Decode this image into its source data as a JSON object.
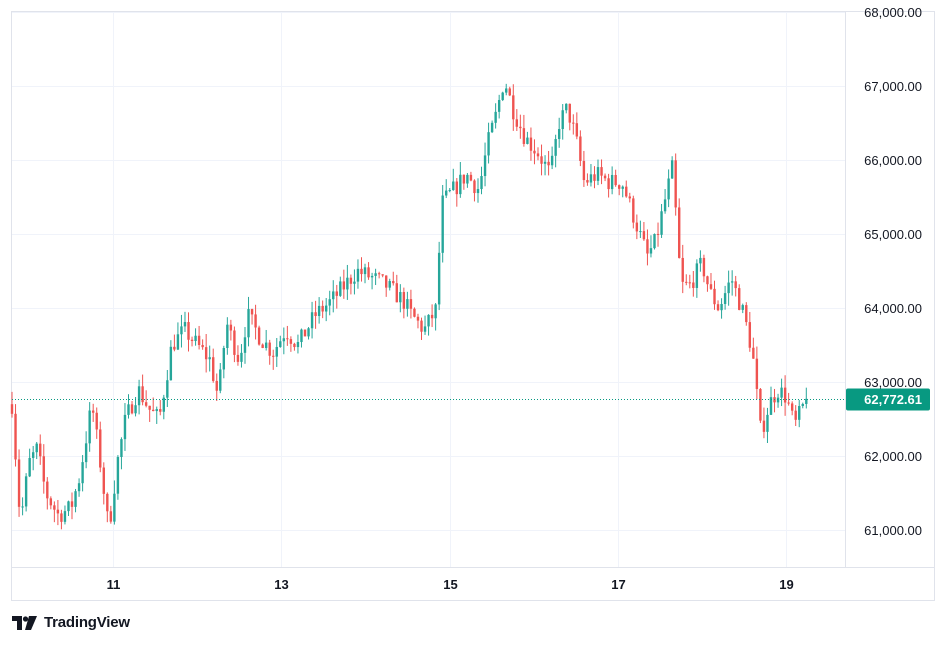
{
  "brand": {
    "name": "TradingView"
  },
  "colors": {
    "up": "#26a69a",
    "down": "#ef5350",
    "last_price_bg": "#089981",
    "grid": "#f0f3fa",
    "text": "#131722"
  },
  "last_price": {
    "value": 62772.61,
    "label": "62,772.61"
  },
  "chart_data": {
    "type": "candlestick",
    "title": "",
    "ylim": [
      60500,
      68000
    ],
    "xlim": [
      9.8,
      19.7
    ],
    "yticks": [
      {
        "value": 61000,
        "label": "61,000.00"
      },
      {
        "value": 62000,
        "label": "62,000.00"
      },
      {
        "value": 63000,
        "label": "63,000.00"
      },
      {
        "value": 64000,
        "label": "64,000.00"
      },
      {
        "value": 65000,
        "label": "65,000.00"
      },
      {
        "value": 66000,
        "label": "66,000.00"
      },
      {
        "value": 67000,
        "label": "67,000.00"
      },
      {
        "value": 68000,
        "label": "68,000.00"
      }
    ],
    "xticks": [
      {
        "value": 11,
        "label": "11"
      },
      {
        "value": 13,
        "label": "13"
      },
      {
        "value": 15,
        "label": "15"
      },
      {
        "value": 17,
        "label": "17"
      },
      {
        "value": 19,
        "label": "19"
      }
    ],
    "grid": true,
    "candle_days_span": [
      9.8,
      19.24
    ],
    "close_path": [
      [
        9.8,
        62700
      ],
      [
        9.9,
        61100
      ],
      [
        10.0,
        61900
      ],
      [
        10.1,
        62100
      ],
      [
        10.2,
        61500
      ],
      [
        10.35,
        61200
      ],
      [
        10.5,
        61300
      ],
      [
        10.6,
        61700
      ],
      [
        10.75,
        62700
      ],
      [
        10.85,
        61900
      ],
      [
        10.95,
        61000
      ],
      [
        11.05,
        61900
      ],
      [
        11.15,
        62500
      ],
      [
        11.3,
        62900
      ],
      [
        11.45,
        62600
      ],
      [
        11.55,
        62500
      ],
      [
        11.7,
        63500
      ],
      [
        11.85,
        63700
      ],
      [
        12.0,
        63500
      ],
      [
        12.15,
        63300
      ],
      [
        12.25,
        62800
      ],
      [
        12.35,
        63800
      ],
      [
        12.5,
        63300
      ],
      [
        12.6,
        63900
      ],
      [
        12.75,
        63600
      ],
      [
        12.9,
        63400
      ],
      [
        13.05,
        63700
      ],
      [
        13.2,
        63500
      ],
      [
        13.4,
        63900
      ],
      [
        13.6,
        64100
      ],
      [
        13.75,
        64300
      ],
      [
        13.9,
        64500
      ],
      [
        14.1,
        64400
      ],
      [
        14.25,
        64300
      ],
      [
        14.45,
        64100
      ],
      [
        14.55,
        63900
      ],
      [
        14.7,
        63700
      ],
      [
        14.85,
        64000
      ],
      [
        14.9,
        65400
      ],
      [
        15.05,
        65600
      ],
      [
        15.2,
        65800
      ],
      [
        15.35,
        65600
      ],
      [
        15.45,
        66200
      ],
      [
        15.55,
        66600
      ],
      [
        15.65,
        67100
      ],
      [
        15.75,
        66700
      ],
      [
        15.9,
        66300
      ],
      [
        16.05,
        66100
      ],
      [
        16.2,
        65800
      ],
      [
        16.3,
        66500
      ],
      [
        16.4,
        66700
      ],
      [
        16.5,
        66300
      ],
      [
        16.6,
        65700
      ],
      [
        16.75,
        65800
      ],
      [
        16.9,
        65700
      ],
      [
        17.05,
        65700
      ],
      [
        17.2,
        65200
      ],
      [
        17.35,
        64700
      ],
      [
        17.45,
        64900
      ],
      [
        17.55,
        65400
      ],
      [
        17.65,
        65900
      ],
      [
        17.75,
        64300
      ],
      [
        17.85,
        64300
      ],
      [
        18.0,
        64600
      ],
      [
        18.1,
        64200
      ],
      [
        18.2,
        64000
      ],
      [
        18.35,
        64400
      ],
      [
        18.5,
        63900
      ],
      [
        18.6,
        63400
      ],
      [
        18.7,
        62300
      ],
      [
        18.8,
        62700
      ],
      [
        18.9,
        62900
      ],
      [
        19.0,
        62800
      ],
      [
        19.1,
        62400
      ],
      [
        19.24,
        62773
      ]
    ]
  }
}
